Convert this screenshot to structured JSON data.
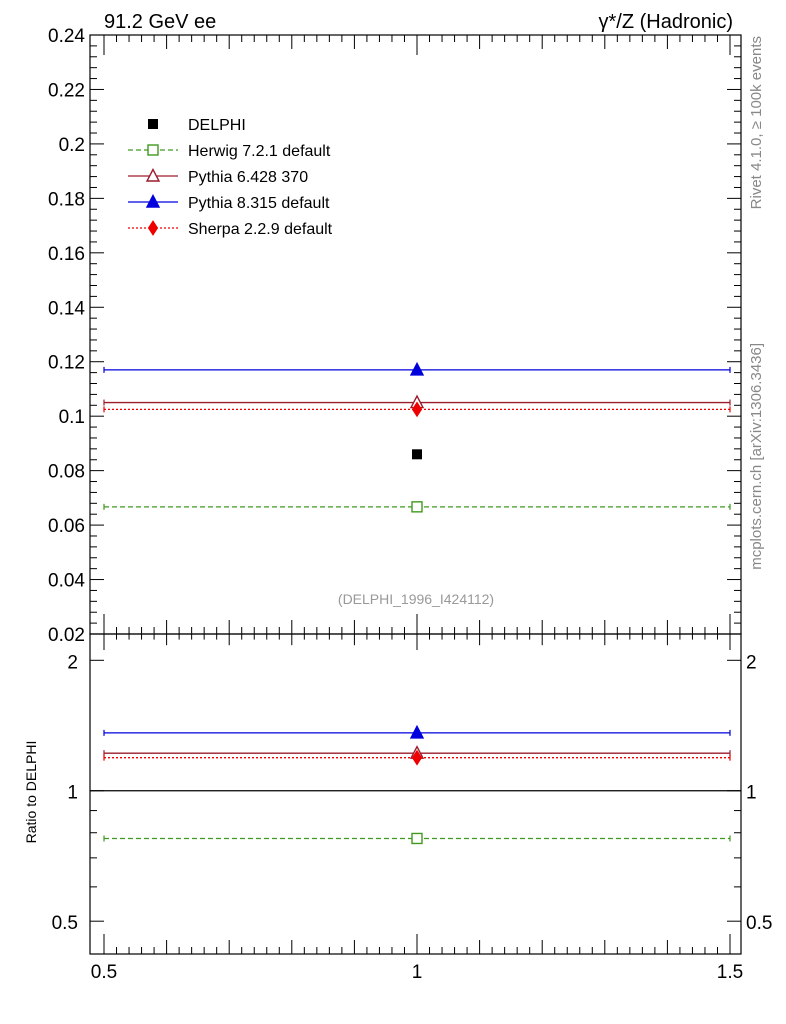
{
  "chart_data": {
    "type": "scatter",
    "header_left": "91.2 GeV ee",
    "header_right": "γ*/Z (Hadronic)",
    "analysis_tag": "(DELPHI_1996_I424112)",
    "side_label_top": "Rivet 4.1.0, ≥ 100k events",
    "side_label_bottom": "mcplots.cern.ch [arXiv:1306.3436]",
    "x_range": [
      0.5,
      1.5
    ],
    "x_ticks": [
      0.5,
      1,
      1.5
    ],
    "x_tick_labels": [
      "0.5",
      "1",
      "1.5"
    ],
    "main_panel": {
      "ylim": [
        0.02,
        0.24
      ],
      "y_ticks": [
        0.02,
        0.04,
        0.06,
        0.08,
        0.1,
        0.12,
        0.14,
        0.16,
        0.18,
        0.2,
        0.22,
        0.24
      ],
      "y_tick_labels": [
        "0.02",
        "0.04",
        "0.06",
        "0.08",
        "0.1",
        "0.12",
        "0.14",
        "0.16",
        "0.18",
        "0.2",
        "0.22",
        "0.24"
      ]
    },
    "ratio_panel": {
      "ylabel": "Ratio to DELPHI",
      "ylim": [
        0.42,
        2.3
      ],
      "log_scale": true,
      "y_ticks": [
        0.5,
        1,
        2
      ],
      "y_tick_labels": [
        "0.5",
        "1",
        "2"
      ],
      "reference": 1
    },
    "series": [
      {
        "name": "DELPHI",
        "kind": "data",
        "marker": "square-filled",
        "color": "#000000",
        "x": 1,
        "y": 0.086,
        "ratio": 1.0
      },
      {
        "name": "Herwig 7.2.1 default",
        "kind": "mc",
        "marker": "square-open",
        "line": "dashed",
        "color": "#3f9a1e",
        "x": 1,
        "xlo": 0.5,
        "xhi": 1.5,
        "y": 0.0667,
        "ratio": 0.776
      },
      {
        "name": "Pythia 6.428 370",
        "kind": "mc",
        "marker": "triangle-open",
        "line": "solid",
        "color": "#9b1c2b",
        "x": 1,
        "xlo": 0.5,
        "xhi": 1.5,
        "y": 0.105,
        "ratio": 1.221
      },
      {
        "name": "Pythia 8.315 default",
        "kind": "mc",
        "marker": "triangle-filled",
        "line": "solid",
        "color": "#0000dd",
        "x": 1,
        "xlo": 0.5,
        "xhi": 1.5,
        "y": 0.117,
        "ratio": 1.36
      },
      {
        "name": "Sherpa 2.2.9 default",
        "kind": "mc",
        "marker": "diamond-filled",
        "line": "dotted",
        "color": "#ee0000",
        "x": 1,
        "xlo": 0.5,
        "xhi": 1.5,
        "y": 0.1025,
        "ratio": 1.192
      }
    ]
  }
}
